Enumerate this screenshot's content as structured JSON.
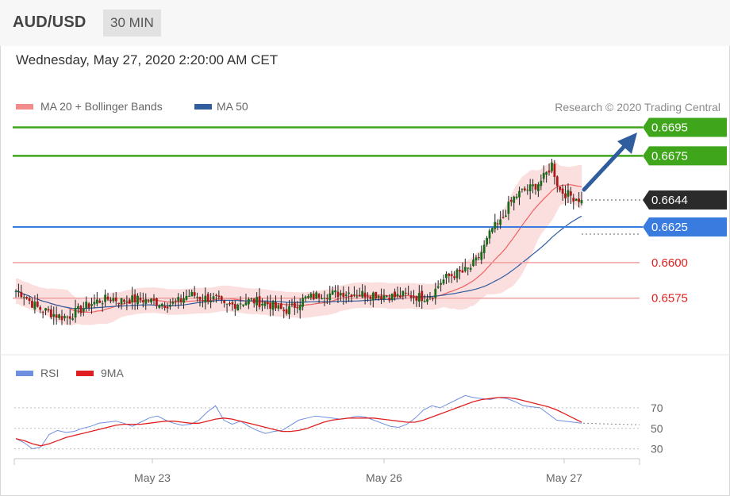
{
  "header": {
    "symbol": "AUD/USD",
    "timeframe": "30 MIN"
  },
  "datetime": "Wednesday, May 27, 2020 2:20:00 AM CET",
  "legend": {
    "ma20_bb": {
      "label": "MA 20 + Bollinger Bands",
      "color": "#f28b8b"
    },
    "ma50": {
      "label": "MA 50",
      "color": "#2f5d9e"
    },
    "research": "Research © 2020 Trading Central"
  },
  "rsi_legend": {
    "rsi": {
      "label": "RSI",
      "color": "#6f8fe0"
    },
    "ma9": {
      "label": "9MA",
      "color": "#e02020"
    }
  },
  "chart_data": [
    {
      "type": "candlestick",
      "x_labels": [
        "May 23",
        "May 26",
        "May 27"
      ],
      "ylim": [
        0.6528,
        0.6712
      ],
      "levels": [
        {
          "label": "0.6695",
          "value": 0.6695,
          "color": "#3fa51a",
          "kind": "resistance"
        },
        {
          "label": "0.6675",
          "value": 0.6675,
          "color": "#3fa51a",
          "kind": "resistance"
        },
        {
          "label": "0.6644",
          "value": 0.6644,
          "color": "#2b2b2b",
          "kind": "last price"
        },
        {
          "label": "0.6625",
          "value": 0.6625,
          "color": "#3a7be0",
          "kind": "pivot"
        },
        {
          "label": "0.6600",
          "value": 0.66,
          "color": "#e02020",
          "kind": "support"
        },
        {
          "label": "0.6575",
          "value": 0.6575,
          "color": "#e02020",
          "kind": "support"
        }
      ],
      "close_path": [
        0.658,
        0.6578,
        0.6572,
        0.6568,
        0.6566,
        0.6564,
        0.6562,
        0.6562,
        0.6565,
        0.6568,
        0.6571,
        0.6573,
        0.6574,
        0.6575,
        0.6573,
        0.6574,
        0.6574,
        0.6574,
        0.6573,
        0.6572,
        0.6571,
        0.6571,
        0.6573,
        0.6577,
        0.6577,
        0.6575,
        0.6575,
        0.6574,
        0.6569,
        0.657,
        0.6572,
        0.6573,
        0.6573,
        0.6572,
        0.6571,
        0.6568,
        0.6566,
        0.6568,
        0.6572,
        0.6575,
        0.6576,
        0.6578,
        0.6578,
        0.6578,
        0.6579,
        0.6579,
        0.6578,
        0.6578,
        0.6578,
        0.6577,
        0.6577,
        0.6576,
        0.6577,
        0.6577,
        0.6576,
        0.6576,
        0.6578,
        0.6586,
        0.659,
        0.6592,
        0.6593,
        0.6596,
        0.6602,
        0.6612,
        0.6624,
        0.6627,
        0.6638,
        0.6646,
        0.665,
        0.6652,
        0.6655,
        0.666,
        0.6669,
        0.6651,
        0.6648,
        0.6646,
        0.6644
      ]
    },
    {
      "type": "line",
      "title": "RSI",
      "series": [
        {
          "name": "RSI",
          "values": [
            40,
            36,
            30,
            32,
            44,
            48,
            46,
            47,
            50,
            52,
            55,
            56,
            57,
            55,
            52,
            56,
            60,
            62,
            58,
            55,
            53,
            54,
            58,
            66,
            72,
            58,
            54,
            57,
            52,
            48,
            45,
            47,
            48,
            53,
            58,
            60,
            62,
            61,
            60,
            59,
            60,
            62,
            61,
            58,
            55,
            52,
            51,
            54,
            60,
            68,
            72,
            70,
            74,
            78,
            82,
            80,
            79,
            78,
            80,
            79,
            76,
            72,
            71,
            70,
            64,
            58,
            57,
            56,
            55
          ]
        },
        {
          "name": "9MA",
          "values": [
            40,
            38,
            35,
            33,
            35,
            38,
            41,
            43,
            45,
            47,
            49,
            51,
            53,
            54,
            54,
            54,
            55,
            56,
            57,
            57,
            56,
            55,
            55,
            57,
            59,
            60,
            59,
            57,
            55,
            53,
            51,
            49,
            47,
            47,
            48,
            50,
            53,
            56,
            58,
            59,
            60,
            60,
            60,
            60,
            59,
            58,
            57,
            56,
            56,
            58,
            61,
            64,
            67,
            70,
            73,
            76,
            78,
            79,
            80,
            80,
            79,
            77,
            75,
            73,
            71,
            68,
            64,
            60,
            56
          ]
        }
      ],
      "y_ticks": [
        70,
        50,
        30
      ],
      "ylim": [
        22,
        90
      ]
    }
  ]
}
